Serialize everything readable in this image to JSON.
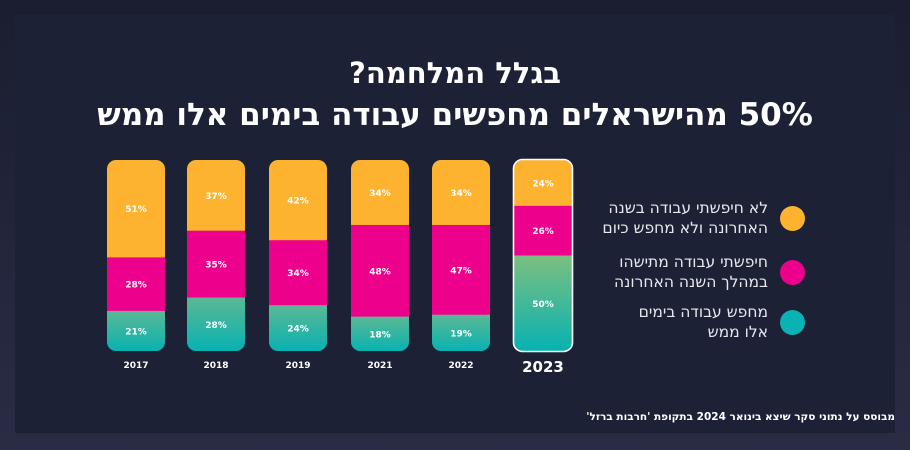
{
  "title": {
    "line1": "בגלל המלחמה?",
    "line2": "50% מהישראלים מחפשים עבודה בימים אלו ממש"
  },
  "chart_data": {
    "type": "bar",
    "stacked": true,
    "categories": [
      "2017",
      "2018",
      "2019",
      "2021",
      "2022",
      "2023"
    ],
    "highlight_category": "2023",
    "series": [
      {
        "name": "לא חיפשתי עבודה בשנה האחרונה ולא מחפש כיום",
        "color": "#fdb32f",
        "values": [
          51,
          37,
          42,
          34,
          34,
          24
        ]
      },
      {
        "name": "חיפשתי עבודה מתישהו במהלך השנה האחרונה",
        "color": "#ec008c",
        "values": [
          28,
          35,
          34,
          48,
          47,
          26
        ]
      },
      {
        "name": "מחפש עבודה בימים אלו ממש",
        "color": "#0ab3b1",
        "values": [
          21,
          28,
          24,
          18,
          19,
          50
        ]
      }
    ],
    "value_suffix": "%",
    "legend_position": "right"
  },
  "legend": [
    {
      "label": "לא חיפשתי עבודה בשנה\nהאחרונה ולא מחפש כיום",
      "color": "#fdb32f"
    },
    {
      "label": "חיפשתי עבודה מתישהו\nבמהלך השנה האחרונה",
      "color": "#ec008c"
    },
    {
      "label": "מחפש עבודה בימים\nאלו ממש",
      "color": "#0ab3b1"
    }
  ],
  "footnote": "מבוסס על נתוני סקר שיצא בינואר 2024 בתקופת 'חרבות ברזל'"
}
